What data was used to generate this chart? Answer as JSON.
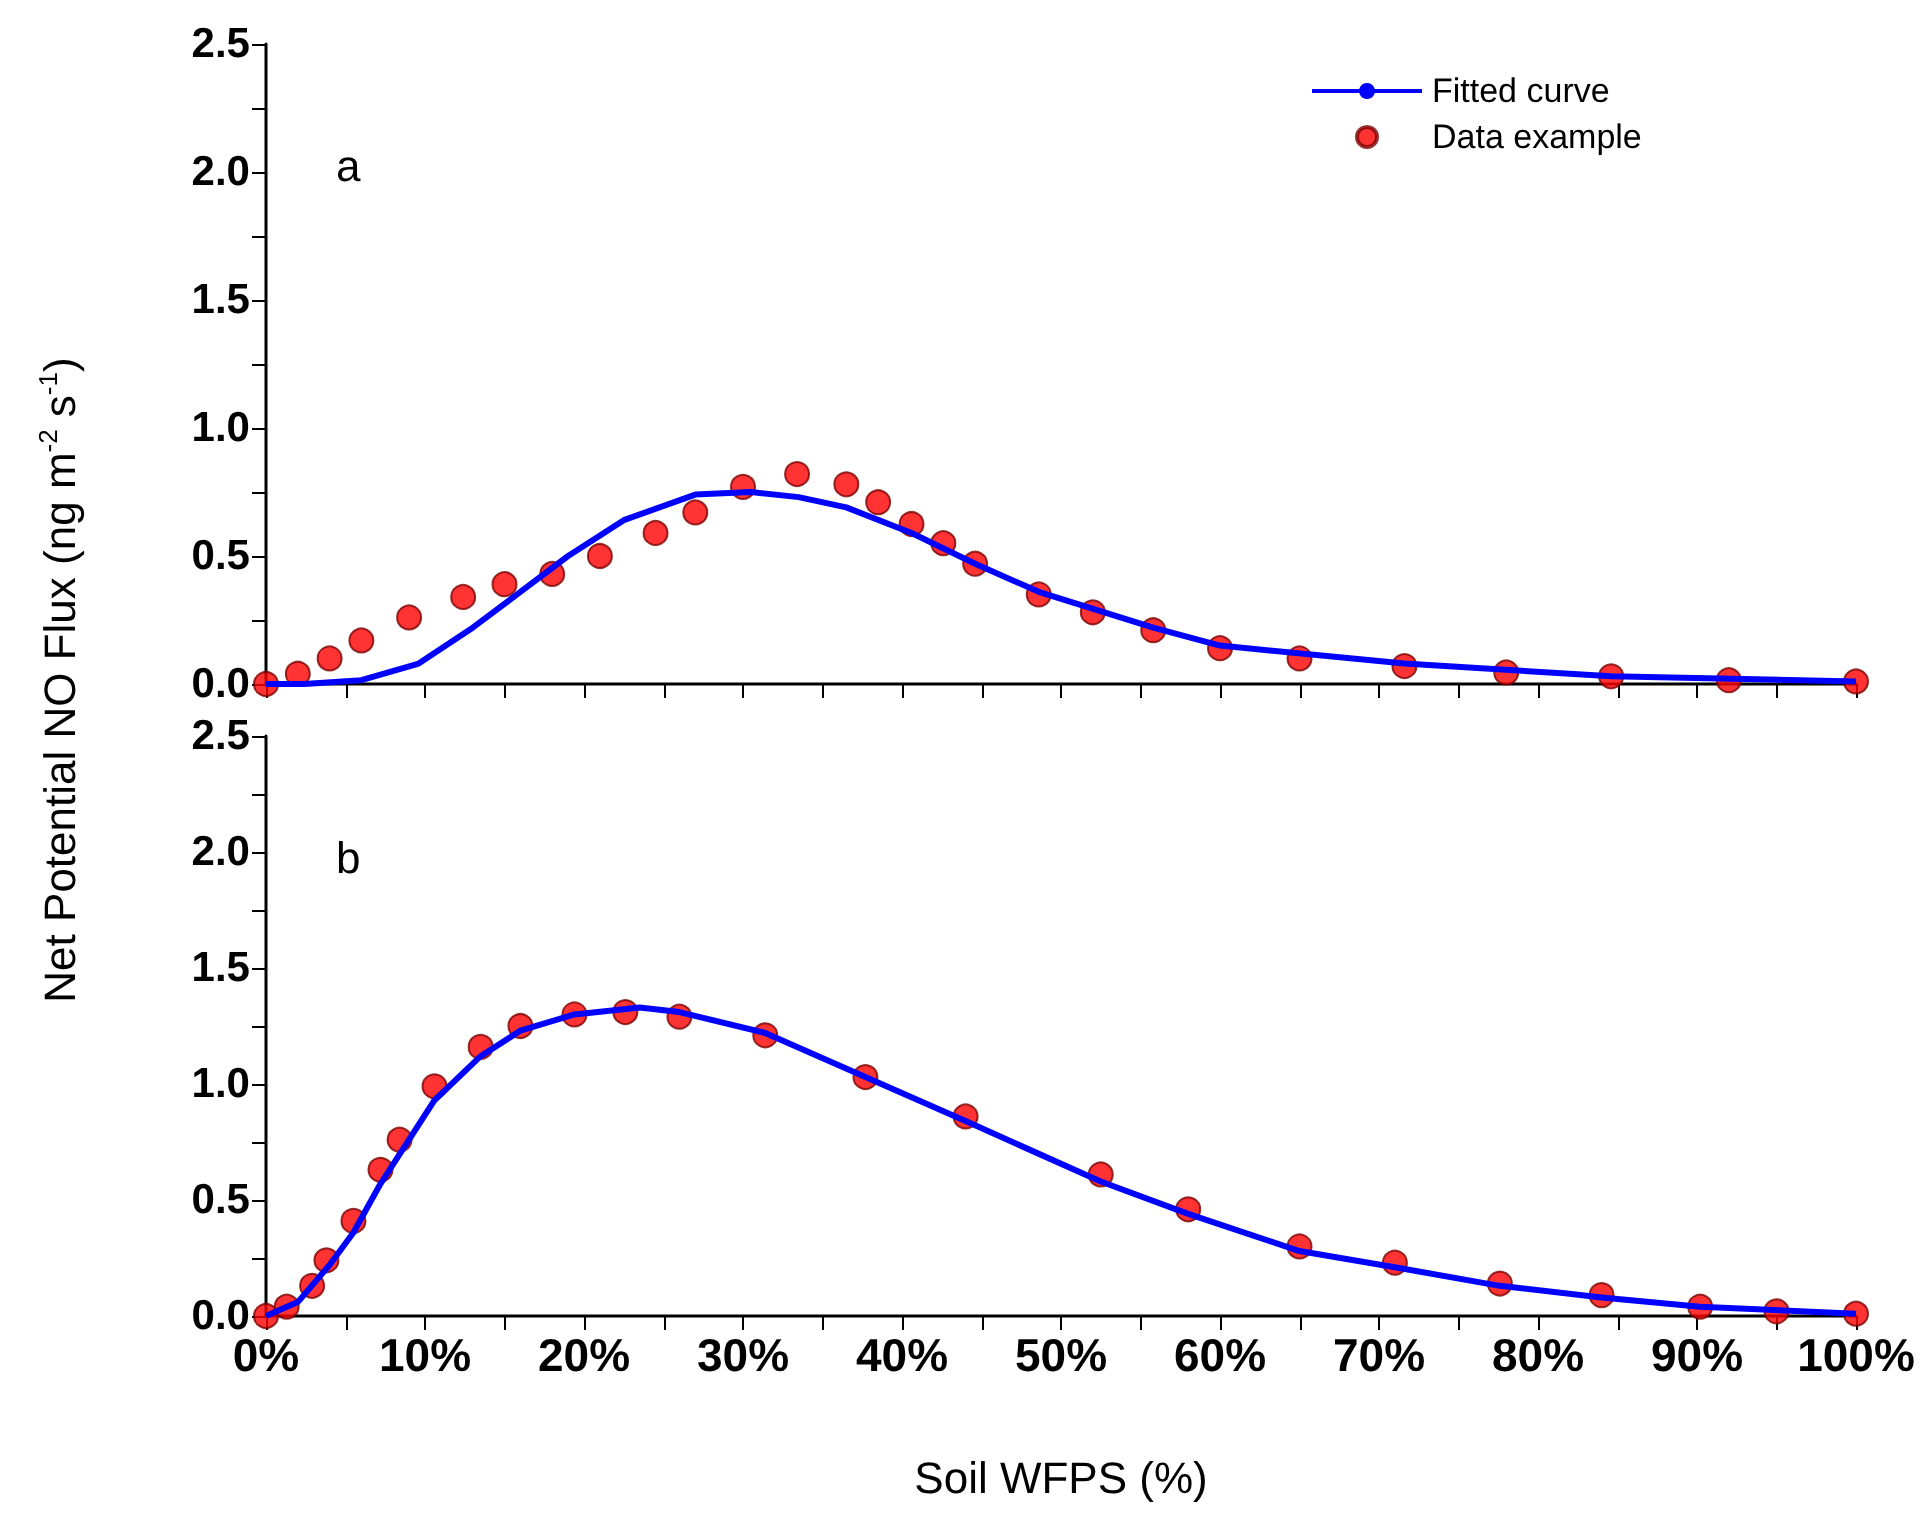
{
  "chart_data": [
    {
      "type": "line",
      "annotations": [
        "a"
      ],
      "legend": "top right",
      "tick_labels": "y",
      "xlim": [
        0,
        100
      ],
      "xticks": [
        {
          "value": 0,
          "label": null
        },
        {
          "value": 5,
          "label": null
        },
        {
          "value": 10,
          "label": null
        },
        {
          "value": 15,
          "label": null
        },
        {
          "value": 20,
          "label": null
        },
        {
          "value": 25,
          "label": null
        },
        {
          "value": 30,
          "label": null
        },
        {
          "value": 35,
          "label": null
        },
        {
          "value": 40,
          "label": null
        },
        {
          "value": 45,
          "label": null
        },
        {
          "value": 50,
          "label": null
        },
        {
          "value": 55,
          "label": null
        },
        {
          "value": 60,
          "label": null
        },
        {
          "value": 65,
          "label": null
        },
        {
          "value": 70,
          "label": null
        },
        {
          "value": 75,
          "label": null
        },
        {
          "value": 80,
          "label": null
        },
        {
          "value": 85,
          "label": null
        },
        {
          "value": 90,
          "label": null
        },
        {
          "value": 95,
          "label": null
        },
        {
          "value": 100,
          "label": null
        }
      ],
      "ylim": [
        0,
        2.5
      ],
      "yticks": [
        {
          "value": 0,
          "label": "0.0"
        },
        {
          "value": 0.25,
          "label": null
        },
        {
          "value": 0.5,
          "label": "0.5"
        },
        {
          "value": 0.75,
          "label": null
        },
        {
          "value": 1,
          "label": "1.0"
        },
        {
          "value": 1.25,
          "label": null
        },
        {
          "value": 1.5,
          "label": "1.5"
        },
        {
          "value": 1.75,
          "label": null
        },
        {
          "value": 2,
          "label": "2.0"
        },
        {
          "value": 2.25,
          "label": null
        },
        {
          "value": 2.5,
          "label": "2.5"
        }
      ],
      "series": [
        {
          "name": "Fitted curve",
          "type": "line",
          "color": "#0000ff",
          "marker": "none",
          "x": [
            0,
            2.4,
            6,
            9.6,
            13,
            16,
            19,
            22.5,
            27,
            30.5,
            33.5,
            36.5,
            40.6,
            44.6,
            48.6,
            55.8,
            60,
            71.6,
            84.6,
            100
          ],
          "values": [
            0,
            0,
            0.015,
            0.08,
            0.22,
            0.36,
            0.5,
            0.64,
            0.74,
            0.75,
            0.73,
            0.69,
            0.59,
            0.47,
            0.36,
            0.22,
            0.15,
            0.08,
            0.03,
            0.01
          ]
        },
        {
          "name": "Data example",
          "type": "scatter",
          "color": "#ff0000",
          "marker": "circle",
          "x": [
            0,
            2,
            4,
            6,
            9,
            12.4,
            15,
            18,
            21,
            24.5,
            27,
            30,
            33.4,
            36.5,
            38.5,
            40.6,
            42.6,
            44.6,
            48.6,
            52,
            55.8,
            60,
            65,
            71.6,
            78,
            84.6,
            92,
            100
          ],
          "values": [
            0,
            0.04,
            0.1,
            0.17,
            0.26,
            0.34,
            0.39,
            0.43,
            0.5,
            0.59,
            0.67,
            0.77,
            0.82,
            0.78,
            0.71,
            0.625,
            0.55,
            0.47,
            0.35,
            0.28,
            0.21,
            0.14,
            0.1,
            0.07,
            0.045,
            0.03,
            0.015,
            0.01
          ]
        }
      ]
    },
    {
      "type": "line",
      "annotations": [
        "b"
      ],
      "xlabel": "Soil WFPS (%)",
      "ylabel": "Net Potential NO Flux (ng m$^{-2}$ s$^{-1}$)",
      "xlim": [
        0,
        100
      ],
      "xticks": [
        {
          "value": 0,
          "label": "0%"
        },
        {
          "value": 5,
          "label": null
        },
        {
          "value": 10,
          "label": "10%"
        },
        {
          "value": 15,
          "label": null
        },
        {
          "value": 20,
          "label": "20%"
        },
        {
          "value": 25,
          "label": null
        },
        {
          "value": 30,
          "label": "30%"
        },
        {
          "value": 35,
          "label": null
        },
        {
          "value": 40,
          "label": "40%"
        },
        {
          "value": 45,
          "label": null
        },
        {
          "value": 50,
          "label": "50%"
        },
        {
          "value": 55,
          "label": null
        },
        {
          "value": 60,
          "label": "60%"
        },
        {
          "value": 65,
          "label": null
        },
        {
          "value": 70,
          "label": "70%"
        },
        {
          "value": 75,
          "label": null
        },
        {
          "value": 80,
          "label": "80%"
        },
        {
          "value": 85,
          "label": null
        },
        {
          "value": 90,
          "label": "90%"
        },
        {
          "value": 95,
          "label": null
        },
        {
          "value": 100,
          "label": "100%"
        }
      ],
      "ylim": [
        0,
        2.5
      ],
      "yticks": [
        {
          "value": 0,
          "label": "0.0"
        },
        {
          "value": 0.25,
          "label": null
        },
        {
          "value": 0.5,
          "label": "0.5"
        },
        {
          "value": 0.75,
          "label": null
        },
        {
          "value": 1,
          "label": "1.0"
        },
        {
          "value": 1.25,
          "label": null
        },
        {
          "value": 1.5,
          "label": "1.5"
        },
        {
          "value": 1.75,
          "label": null
        },
        {
          "value": 2,
          "label": "2.0"
        },
        {
          "value": 2.25,
          "label": null
        },
        {
          "value": 2.5,
          "label": "2.5"
        }
      ],
      "series": [
        {
          "type": "line",
          "color": "#0000ff",
          "marker": "none",
          "x": [
            0,
            2,
            4,
            5.5,
            7.2,
            10.6,
            13.5,
            16,
            19.4,
            23.5,
            26,
            31.4,
            37.7,
            44,
            52.5,
            58,
            65,
            71,
            77.6,
            84,
            90.2,
            100
          ],
          "values": [
            0,
            0.06,
            0.22,
            0.36,
            0.57,
            0.93,
            1.12,
            1.23,
            1.3,
            1.33,
            1.31,
            1.22,
            1.03,
            0.84,
            0.58,
            0.44,
            0.28,
            0.21,
            0.13,
            0.08,
            0.04,
            0.01
          ]
        },
        {
          "type": "scatter",
          "color": "#ff0000",
          "marker": "circle",
          "x": [
            0,
            1.3,
            2.9,
            3.8,
            5.5,
            7.2,
            8.4,
            10.6,
            13.5,
            16,
            19.4,
            22.6,
            26,
            31.4,
            37.7,
            44,
            52.5,
            58,
            65,
            71,
            77.6,
            84,
            90.2,
            95,
            100
          ],
          "values": [
            0,
            0.04,
            0.13,
            0.24,
            0.41,
            0.63,
            0.76,
            0.99,
            1.16,
            1.25,
            1.3,
            1.31,
            1.29,
            1.21,
            1.03,
            0.86,
            0.61,
            0.46,
            0.3,
            0.23,
            0.14,
            0.09,
            0.04,
            0.02,
            0.01
          ]
        }
      ]
    }
  ]
}
